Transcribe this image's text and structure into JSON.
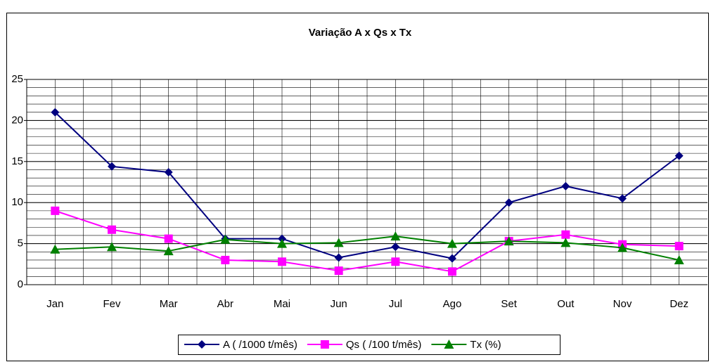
{
  "chart_data": {
    "type": "line",
    "title": "Variação A x Qs x Tx",
    "categories": [
      "Jan",
      "Fev",
      "Mar",
      "Abr",
      "Mai",
      "Jun",
      "Jul",
      "Ago",
      "Set",
      "Out",
      "Nov",
      "Dez"
    ],
    "series": [
      {
        "name": "A ( /1000 t/mês)",
        "color": "#000080",
        "marker": "diamond",
        "values": [
          21.0,
          14.4,
          13.7,
          5.6,
          5.6,
          3.3,
          4.6,
          3.2,
          10.0,
          12.0,
          10.5,
          15.7
        ]
      },
      {
        "name": "Qs ( /100 t/mês)",
        "color": "#ff00ff",
        "marker": "square",
        "values": [
          9.0,
          6.7,
          5.6,
          3.0,
          2.8,
          1.7,
          2.8,
          1.6,
          5.3,
          6.1,
          4.9,
          4.7
        ]
      },
      {
        "name": "Tx (%)",
        "color": "#008000",
        "marker": "triangle",
        "values": [
          4.3,
          4.6,
          4.1,
          5.5,
          5.0,
          5.1,
          5.9,
          5.0,
          5.3,
          5.1,
          4.5,
          3.0
        ]
      }
    ],
    "ylim": [
      0,
      25
    ],
    "yticks": [
      0,
      5,
      10,
      15,
      20,
      25
    ],
    "grid": true,
    "minor_grid_step": 1,
    "legend": "bottom"
  }
}
